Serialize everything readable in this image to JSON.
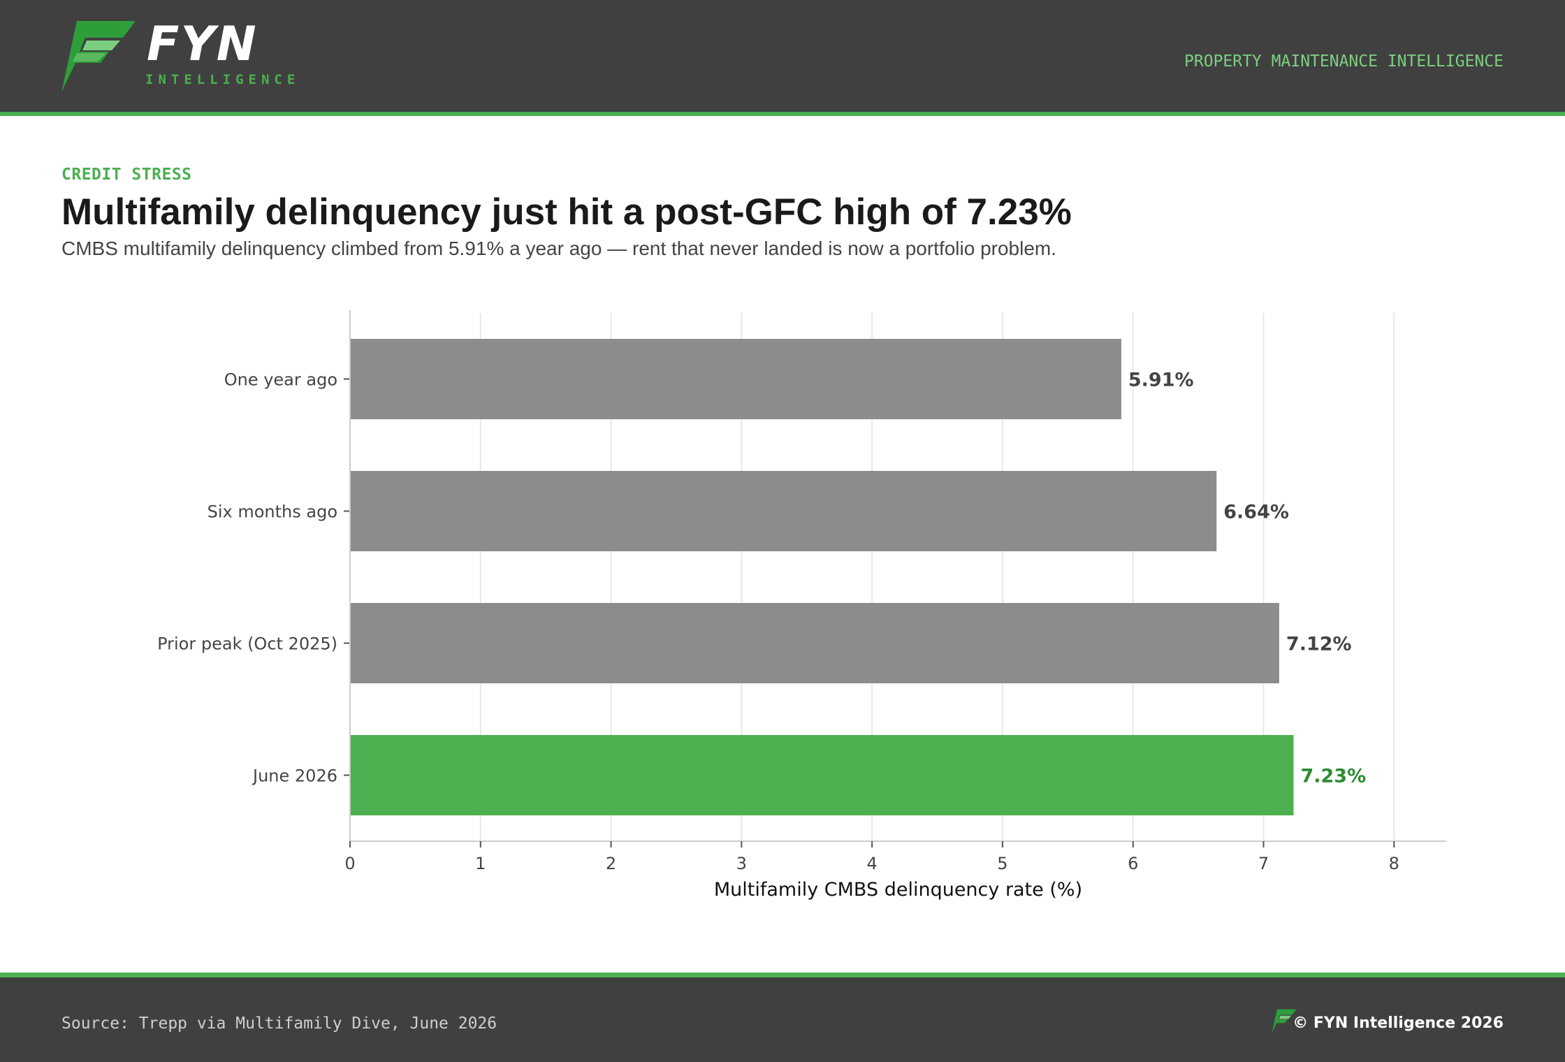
{
  "header": {
    "brand": "FYN",
    "brand_sub": "INTELLIGENCE",
    "tagline": "PROPERTY MAINTENANCE INTELLIGENCE"
  },
  "article": {
    "kicker": "CREDIT STRESS",
    "title": "Multifamily delinquency just hit a post-GFC high of 7.23%",
    "subtitle": "CMBS multifamily delinquency climbed from 5.91% a year ago — rent that never landed is now a portfolio problem."
  },
  "chart_data": {
    "type": "bar",
    "orientation": "horizontal",
    "categories": [
      "One year ago",
      "Six months ago",
      "Prior peak (Oct 2025)",
      "June 2026"
    ],
    "values": [
      5.91,
      6.64,
      7.12,
      7.23
    ],
    "value_labels": [
      "5.91%",
      "6.64%",
      "7.12%",
      "7.23%"
    ],
    "highlight_index": 3,
    "xlabel": "Multifamily CMBS delinquency rate (%)",
    "xlim": [
      0,
      8.4
    ],
    "xticks": [
      0,
      1,
      2,
      3,
      4,
      5,
      6,
      7,
      8
    ],
    "grid": "vertical",
    "colors": {
      "base": "#8c8c8c",
      "highlight": "#4caf50",
      "base_label": "#444444",
      "highlight_label": "#2e8b34"
    }
  },
  "footer": {
    "source": "Source: Trepp via Multifamily Dive, June 2026",
    "copyright": "© FYN Intelligence 2026"
  },
  "colors": {
    "accent": "#4caf50",
    "bar": "#404040"
  }
}
